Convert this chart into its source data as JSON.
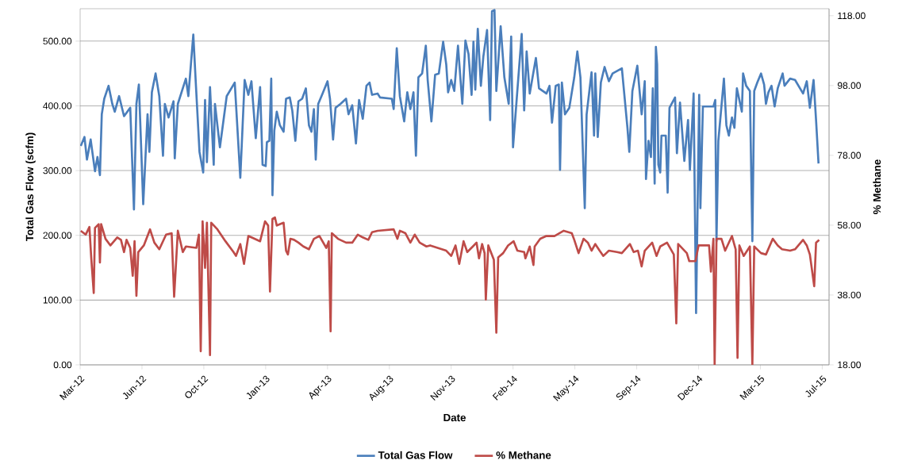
{
  "chart_data": {
    "type": "line",
    "xlabel": "Date",
    "ylabel": "Total Gas Flow (scfm)",
    "y2label": "% Methane",
    "xlim": [
      "2012-03-21",
      "2015-07-15"
    ],
    "xticks": [
      {
        "value": "2012-03-21",
        "label": "Mar-12"
      },
      {
        "value": "2012-06-29",
        "label": "Jun-12"
      },
      {
        "value": "2012-10-07",
        "label": "Oct-12"
      },
      {
        "value": "2013-01-15",
        "label": "Jan-13"
      },
      {
        "value": "2013-04-25",
        "label": "Apr-13"
      },
      {
        "value": "2013-08-03",
        "label": "Aug-13"
      },
      {
        "value": "2013-11-11",
        "label": "Nov-13"
      },
      {
        "value": "2014-02-19",
        "label": "Feb-14"
      },
      {
        "value": "2014-05-30",
        "label": "May-14"
      },
      {
        "value": "2014-09-07",
        "label": "Sep-14"
      },
      {
        "value": "2014-12-16",
        "label": "Dec-14"
      },
      {
        "value": "2015-03-26",
        "label": "Mar-15"
      },
      {
        "value": "2015-07-04",
        "label": "Jul-15"
      }
    ],
    "ylim": [
      0,
      550
    ],
    "yticks": [
      {
        "value": 0,
        "label": "0.00"
      },
      {
        "value": 100,
        "label": "100.00"
      },
      {
        "value": 200,
        "label": "200.00"
      },
      {
        "value": 300,
        "label": "300.00"
      },
      {
        "value": 400,
        "label": "400.00"
      },
      {
        "value": 500,
        "label": "500.00"
      }
    ],
    "y2lim": [
      18,
      120
    ],
    "y2ticks": [
      {
        "value": 18,
        "label": "18.00"
      },
      {
        "value": 38,
        "label": "38.00"
      },
      {
        "value": 58,
        "label": "58.00"
      },
      {
        "value": 78,
        "label": "78.00"
      },
      {
        "value": 98,
        "label": "98.00"
      },
      {
        "value": 118,
        "label": "118.00"
      }
    ],
    "grid": "y",
    "legend": "bottom",
    "series": [
      {
        "name": "Total Gas Flow",
        "color": "#4a7ebb",
        "x": [
          "2012-03-22",
          "2012-03-28",
          "2012-04-01",
          "2012-04-07",
          "2012-04-14",
          "2012-04-18",
          "2012-04-22",
          "2012-04-25",
          "2012-04-29",
          "2012-05-06",
          "2012-05-12",
          "2012-05-16",
          "2012-05-23",
          "2012-05-31",
          "2012-06-10",
          "2012-06-16",
          "2012-06-20",
          "2012-06-24",
          "2012-07-01",
          "2012-07-08",
          "2012-07-11",
          "2012-07-15",
          "2012-07-21",
          "2012-07-27",
          "2012-08-02",
          "2012-08-05",
          "2012-08-11",
          "2012-08-19",
          "2012-08-21",
          "2012-08-26",
          "2012-09-08",
          "2012-09-12",
          "2012-09-20",
          "2012-09-24",
          "2012-09-30",
          "2012-10-06",
          "2012-10-09",
          "2012-10-12",
          "2012-10-17",
          "2012-10-23",
          "2012-10-25",
          "2012-11-02",
          "2012-11-13",
          "2012-11-26",
          "2012-12-05",
          "2012-12-12",
          "2012-12-18",
          "2012-12-23",
          "2012-12-30",
          "2013-01-06",
          "2013-01-10",
          "2013-01-15",
          "2013-01-17",
          "2013-01-21",
          "2013-01-24",
          "2013-01-26",
          "2013-01-29",
          "2013-02-02",
          "2013-02-07",
          "2013-02-13",
          "2013-02-17",
          "2013-02-23",
          "2013-02-27",
          "2013-03-04",
          "2013-03-09",
          "2013-03-15",
          "2013-03-21",
          "2013-03-26",
          "2013-03-30",
          "2013-04-03",
          "2013-04-06",
          "2013-04-10",
          "2013-04-17",
          "2013-04-25",
          "2013-04-29",
          "2013-05-04",
          "2013-05-08",
          "2013-05-16",
          "2013-05-25",
          "2013-05-29",
          "2013-06-04",
          "2013-06-10",
          "2013-06-15",
          "2013-06-21",
          "2013-06-27",
          "2013-07-02",
          "2013-07-06",
          "2013-07-15",
          "2013-07-19",
          "2013-08-07",
          "2013-08-10",
          "2013-08-15",
          "2013-08-20",
          "2013-08-27",
          "2013-09-01",
          "2013-09-06",
          "2013-09-11",
          "2013-09-15",
          "2013-09-19",
          "2013-09-25",
          "2013-10-01",
          "2013-10-04",
          "2013-10-10",
          "2013-10-16",
          "2013-10-22",
          "2013-10-29",
          "2013-11-03",
          "2013-11-06",
          "2013-11-11",
          "2013-11-16",
          "2013-11-22",
          "2013-11-29",
          "2013-12-04",
          "2013-12-09",
          "2013-12-14",
          "2013-12-17",
          "2013-12-20",
          "2013-12-24",
          "2013-12-29",
          "2014-01-02",
          "2014-01-08",
          "2014-01-13",
          "2014-01-16",
          "2014-01-20",
          "2014-01-23",
          "2014-01-30",
          "2014-02-05",
          "2014-02-12",
          "2014-02-16",
          "2014-02-19",
          "2014-02-25",
          "2014-03-05",
          "2014-03-09",
          "2014-03-13",
          "2014-03-18",
          "2014-03-28",
          "2014-04-02",
          "2014-04-14",
          "2014-04-19",
          "2014-04-23",
          "2014-04-29",
          "2014-05-04",
          "2014-05-06",
          "2014-05-09",
          "2014-05-14",
          "2014-05-21",
          "2014-05-29",
          "2014-06-03",
          "2014-06-08",
          "2014-06-15",
          "2014-06-18",
          "2014-06-26",
          "2014-06-30",
          "2014-07-02",
          "2014-07-06",
          "2014-07-11",
          "2014-07-17",
          "2014-07-24",
          "2014-07-30",
          "2014-08-14",
          "2014-08-23",
          "2014-08-26",
          "2014-08-31",
          "2014-09-08",
          "2014-09-15",
          "2014-09-20",
          "2014-09-22",
          "2014-09-26",
          "2014-09-30",
          "2014-10-03",
          "2014-10-06",
          "2014-10-08",
          "2014-10-10",
          "2014-10-12",
          "2014-10-15",
          "2014-10-17",
          "2014-10-24",
          "2014-10-27",
          "2014-10-30",
          "2014-11-08",
          "2014-11-11",
          "2014-11-16",
          "2014-11-23",
          "2014-11-29",
          "2014-12-02",
          "2014-12-08",
          "2014-12-12",
          "2014-12-17",
          "2014-12-19",
          "2014-12-23",
          "2015-01-09",
          "2015-01-12",
          "2015-01-14",
          "2015-01-17",
          "2015-01-26",
          "2015-01-30",
          "2015-02-03",
          "2015-02-08",
          "2015-02-12",
          "2015-02-16",
          "2015-02-24",
          "2015-02-26",
          "2015-03-03",
          "2015-03-09",
          "2015-03-13",
          "2015-03-16",
          "2015-03-21",
          "2015-03-27",
          "2015-04-01",
          "2015-04-04",
          "2015-04-08",
          "2015-04-13",
          "2015-04-18",
          "2015-04-23",
          "2015-05-01",
          "2015-05-04",
          "2015-05-13",
          "2015-05-21",
          "2015-06-03",
          "2015-06-09",
          "2015-06-14",
          "2015-06-20",
          "2015-06-24",
          "2015-06-28"
        ],
        "values": [
          338,
          352,
          317,
          348,
          299,
          321,
          293,
          387,
          411,
          431,
          403,
          391,
          415,
          384,
          397,
          240,
          403,
          433,
          248,
          387,
          329,
          421,
          450,
          415,
          323,
          403,
          382,
          407,
          319,
          403,
          442,
          415,
          510,
          436,
          329,
          297,
          409,
          313,
          429,
          309,
          403,
          336,
          415,
          436,
          289,
          440,
          417,
          438,
          350,
          429,
          309,
          307,
          344,
          346,
          442,
          262,
          362,
          391,
          370,
          360,
          411,
          413,
          393,
          346,
          407,
          411,
          427,
          370,
          360,
          395,
          317,
          403,
          419,
          438,
          411,
          348,
          397,
          403,
          411,
          387,
          401,
          342,
          409,
          380,
          431,
          436,
          417,
          419,
          413,
          411,
          395,
          489,
          415,
          376,
          421,
          395,
          421,
          323,
          444,
          450,
          493,
          440,
          376,
          448,
          450,
          499,
          464,
          421,
          440,
          423,
          493,
          403,
          501,
          480,
          417,
          499,
          425,
          519,
          431,
          476,
          517,
          378,
          546,
          548,
          423,
          523,
          444,
          403,
          507,
          336,
          411,
          511,
          393,
          484,
          419,
          474,
          427,
          419,
          431,
          374,
          431,
          433,
          301,
          436,
          387,
          397,
          444,
          484,
          444,
          242,
          387,
          452,
          354,
          450,
          352,
          436,
          460,
          438,
          450,
          458,
          366,
          329,
          423,
          462,
          387,
          438,
          287,
          346,
          321,
          427,
          280,
          491,
          464,
          309,
          297,
          354,
          354,
          266,
          397,
          413,
          327,
          405,
          315,
          378,
          301,
          419,
          80,
          417,
          242,
          399,
          399,
          409,
          191,
          346,
          442,
          370,
          354,
          382,
          366,
          427,
          391,
          450,
          431,
          423,
          191,
          423,
          436,
          450,
          433,
          403,
          421,
          431,
          399,
          427,
          450,
          431,
          442,
          440,
          419,
          438,
          397,
          440,
          378,
          311
        ]
      },
      {
        "name": "% Methane",
        "color": "#be4b48",
        "axis": "y2",
        "x": [
          "2012-03-22",
          "2012-03-30",
          "2012-04-05",
          "2012-04-08",
          "2012-04-12",
          "2012-04-14",
          "2012-04-20",
          "2012-04-22",
          "2012-04-24",
          "2012-05-01",
          "2012-05-09",
          "2012-05-20",
          "2012-05-26",
          "2012-05-31",
          "2012-06-04",
          "2012-06-10",
          "2012-06-14",
          "2012-06-17",
          "2012-06-20",
          "2012-06-23",
          "2012-07-02",
          "2012-07-12",
          "2012-07-19",
          "2012-07-27",
          "2012-08-07",
          "2012-08-16",
          "2012-08-20",
          "2012-08-26",
          "2012-09-03",
          "2012-09-08",
          "2012-09-25",
          "2012-09-29",
          "2012-10-02",
          "2012-10-05",
          "2012-10-09",
          "2012-10-12",
          "2012-10-17",
          "2012-10-19",
          "2012-10-29",
          "2012-11-11",
          "2012-11-24",
          "2012-11-28",
          "2012-12-05",
          "2012-12-11",
          "2012-12-18",
          "2012-12-28",
          "2013-01-06",
          "2013-01-14",
          "2013-01-19",
          "2013-01-22",
          "2013-01-26",
          "2013-01-30",
          "2013-02-02",
          "2013-02-13",
          "2013-02-17",
          "2013-02-20",
          "2013-02-24",
          "2013-03-02",
          "2013-03-09",
          "2013-03-17",
          "2013-03-26",
          "2013-04-03",
          "2013-04-12",
          "2013-04-23",
          "2013-04-27",
          "2013-04-30",
          "2013-05-02",
          "2013-05-12",
          "2013-05-25",
          "2013-06-04",
          "2013-06-13",
          "2013-06-21",
          "2013-06-30",
          "2013-07-06",
          "2013-07-15",
          "2013-08-10",
          "2013-08-16",
          "2013-08-20",
          "2013-08-29",
          "2013-09-06",
          "2013-09-13",
          "2013-09-21",
          "2013-10-02",
          "2013-10-08",
          "2013-11-03",
          "2013-11-11",
          "2013-11-18",
          "2013-11-24",
          "2013-12-01",
          "2013-12-07",
          "2013-12-16",
          "2013-12-22",
          "2013-12-26",
          "2013-12-31",
          "2014-01-04",
          "2014-01-06",
          "2014-01-10",
          "2014-01-19",
          "2014-01-23",
          "2014-01-26",
          "2014-02-03",
          "2014-02-11",
          "2014-02-20",
          "2014-02-26",
          "2014-03-09",
          "2014-03-11",
          "2014-03-18",
          "2014-03-24",
          "2014-03-26",
          "2014-04-04",
          "2014-04-14",
          "2014-04-27",
          "2014-05-12",
          "2014-05-25",
          "2014-05-29",
          "2014-06-05",
          "2014-06-13",
          "2014-06-20",
          "2014-06-26",
          "2014-07-02",
          "2014-07-09",
          "2014-07-15",
          "2014-07-24",
          "2014-08-06",
          "2014-08-14",
          "2014-08-27",
          "2014-09-02",
          "2014-09-09",
          "2014-09-15",
          "2014-09-20",
          "2014-10-02",
          "2014-10-09",
          "2014-10-15",
          "2014-10-26",
          "2014-11-06",
          "2014-11-10",
          "2014-11-13",
          "2014-11-27",
          "2014-12-01",
          "2014-12-11",
          "2014-12-16",
          "2015-01-02",
          "2015-01-05",
          "2015-01-09",
          "2015-01-11",
          "2015-01-14",
          "2015-01-22",
          "2015-01-28",
          "2015-02-08",
          "2015-02-14",
          "2015-02-17",
          "2015-02-20",
          "2015-02-27",
          "2015-03-09",
          "2015-03-13",
          "2015-03-16",
          "2015-03-27",
          "2015-04-04",
          "2015-04-15",
          "2015-04-23",
          "2015-04-30",
          "2015-05-13",
          "2015-05-21",
          "2015-06-03",
          "2015-06-09",
          "2015-06-14",
          "2015-06-21",
          "2015-06-24",
          "2015-06-29"
        ],
        "values": [
          56.4,
          55.3,
          57.5,
          48.5,
          38.6,
          57.2,
          58.3,
          47.3,
          58.3,
          54.1,
          52.2,
          54.5,
          53.8,
          50.3,
          53.8,
          51.5,
          43.5,
          53.4,
          37.8,
          50.3,
          52.2,
          56.8,
          53.0,
          51.1,
          55.3,
          55.7,
          37.5,
          56.4,
          50.3,
          51.9,
          51.5,
          55.3,
          21.9,
          59.1,
          45.8,
          58.7,
          20.8,
          58.7,
          56.8,
          53.4,
          50.3,
          49.2,
          52.6,
          46.9,
          54.9,
          54.1,
          53.4,
          59.1,
          57.9,
          39.0,
          59.8,
          60.2,
          57.9,
          58.7,
          50.7,
          49.6,
          54.1,
          53.8,
          53.0,
          51.9,
          51.1,
          54.1,
          54.9,
          51.5,
          53.4,
          27.6,
          55.7,
          54.1,
          53.0,
          53.0,
          55.3,
          54.5,
          53.8,
          56.0,
          56.4,
          56.8,
          54.1,
          56.4,
          55.7,
          53.0,
          55.3,
          53.0,
          51.9,
          52.2,
          50.7,
          49.2,
          52.2,
          46.9,
          53.4,
          50.3,
          51.9,
          53.0,
          48.5,
          52.6,
          50.0,
          36.7,
          52.2,
          48.1,
          27.2,
          48.8,
          50.0,
          52.2,
          53.4,
          50.7,
          50.3,
          48.5,
          51.9,
          46.6,
          51.9,
          54.1,
          54.9,
          54.9,
          56.4,
          55.7,
          53.8,
          50.0,
          54.1,
          53.0,
          50.7,
          52.6,
          50.7,
          49.2,
          50.7,
          50.3,
          50.0,
          52.6,
          50.3,
          50.7,
          46.2,
          50.7,
          53.0,
          49.2,
          51.9,
          53.0,
          49.6,
          29.9,
          52.6,
          50.0,
          47.7,
          47.7,
          52.2,
          52.2,
          44.7,
          54.1,
          18,
          54.1,
          54.1,
          50.7,
          54.9,
          51.1,
          20.0,
          52.2,
          49.2,
          51.9,
          18,
          51.9,
          50.0,
          49.6,
          54.1,
          52.2,
          51.1,
          50.7,
          51.1,
          53.8,
          52.2,
          49.6,
          40.5,
          53.0,
          53.8
        ]
      }
    ]
  }
}
